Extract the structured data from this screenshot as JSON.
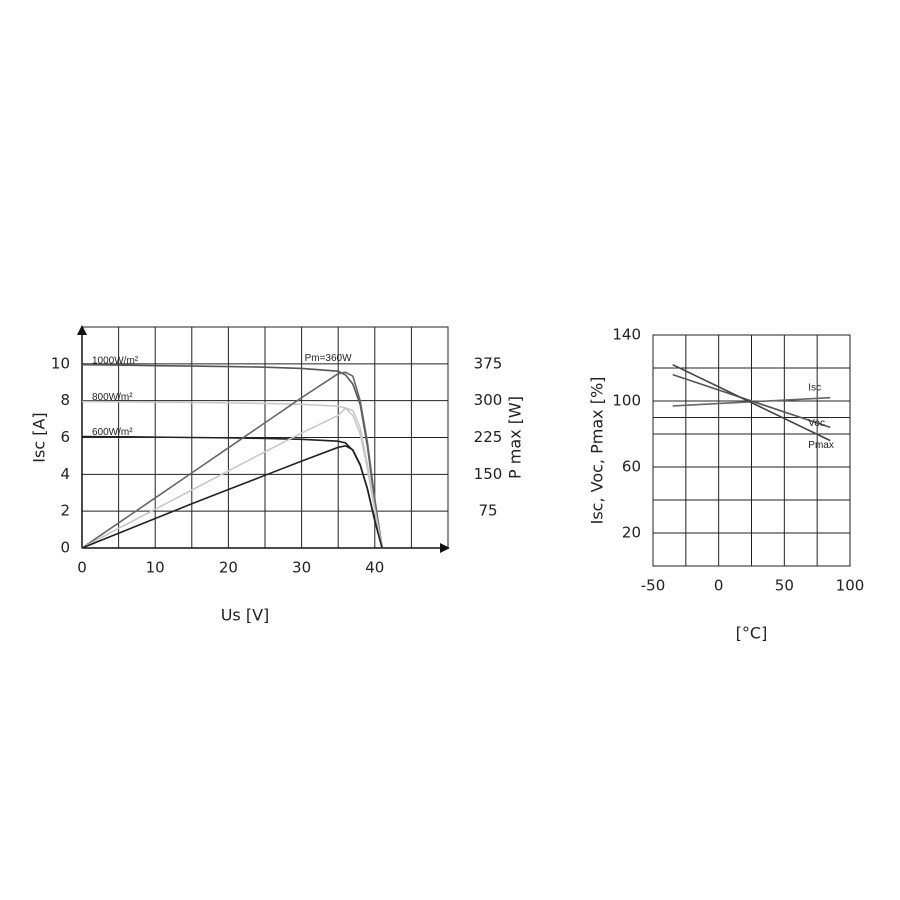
{
  "chart_data": [
    {
      "type": "line",
      "x": [
        0,
        5,
        10,
        15,
        20,
        25,
        30,
        35,
        36,
        37,
        38,
        39,
        40,
        41
      ],
      "xlim": [
        0,
        50
      ],
      "xticks": [
        0,
        10,
        20,
        30,
        40
      ],
      "xminorticks": [
        5,
        15,
        25,
        35,
        45
      ],
      "ylim": [
        0,
        12
      ],
      "yticks": [
        0,
        2,
        4,
        6,
        8,
        10
      ],
      "y2lim": [
        0,
        450
      ],
      "y2ticks": [
        75,
        150,
        225,
        300,
        375
      ],
      "xlabel": "Us [V]",
      "ylabel": "Isc [A]",
      "y2label": "P max [W]",
      "annotation": "Pm=360W",
      "grid": true,
      "series": [
        {
          "name": "1000W/m²",
          "color": "#555555",
          "values": [
            9.95,
            9.93,
            9.9,
            9.88,
            9.85,
            9.82,
            9.75,
            9.6,
            9.4,
            8.9,
            7.8,
            5.5,
            2.5,
            0
          ]
        },
        {
          "name": "800W/m²",
          "color": "#c8c8c8",
          "values": [
            7.95,
            7.94,
            7.92,
            7.9,
            7.88,
            7.85,
            7.8,
            7.7,
            7.6,
            7.2,
            6.2,
            4.3,
            2,
            0
          ]
        },
        {
          "name": "600W/m²",
          "color": "#222222",
          "values": [
            6.05,
            6.04,
            6.02,
            6,
            5.98,
            5.95,
            5.9,
            5.8,
            5.7,
            5.3,
            4.5,
            3.2,
            1.5,
            0
          ]
        },
        {
          "color": "#666666",
          "axis": "y2",
          "values": [
            0,
            51,
            102,
            153,
            204,
            255,
            306,
            355,
            358,
            350,
            300,
            215,
            100,
            0
          ]
        },
        {
          "color": "#c8c8c8",
          "axis": "y2",
          "values": [
            0,
            40,
            79,
            118,
            157,
            196,
            234,
            270,
            285,
            280,
            245,
            170,
            80,
            0
          ]
        },
        {
          "color": "#222222",
          "axis": "y2",
          "values": [
            0,
            30,
            60,
            90,
            119,
            148,
            177,
            205,
            208,
            200,
            170,
            120,
            55,
            0
          ]
        }
      ]
    },
    {
      "type": "line",
      "x": [
        -35,
        85
      ],
      "xlim": [
        -50,
        100
      ],
      "xticks": [
        -50,
        0,
        50,
        100
      ],
      "xminorticks": [
        -25,
        25,
        75
      ],
      "ylim": [
        0,
        140
      ],
      "yticks": [
        20,
        60,
        100,
        140
      ],
      "yminorticks": [
        40,
        80,
        90,
        120
      ],
      "xlabel": "[°C]",
      "ylabel": "Isc, Voc, Pmax [%]",
      "grid": true,
      "series": [
        {
          "name": "Isc",
          "color": "#666666",
          "values": [
            97,
            102
          ]
        },
        {
          "name": "Voc",
          "color": "#555555",
          "values": [
            116,
            84
          ]
        },
        {
          "name": "Pmax",
          "color": "#444444",
          "values": [
            122,
            76
          ]
        }
      ]
    }
  ]
}
